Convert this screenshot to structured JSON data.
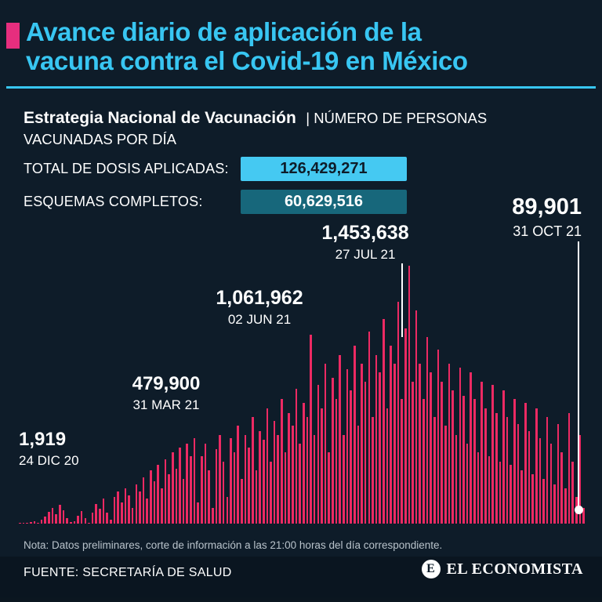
{
  "header": {
    "title_line1": "Avance diario de aplicación de la",
    "title_line2": "vacuna contra el Covid-19 en México",
    "subtitle_bold": "Estrategia Nacional de Vacunación",
    "subtitle_rest": "| NÚMERO DE PERSONAS VACUNADAS POR DÍA"
  },
  "stats": [
    {
      "label": "TOTAL DE DOSIS APLICADAS:",
      "value": "126,429,271"
    },
    {
      "label": "ESQUEMAS COMPLETOS:",
      "value": "60,629,516"
    }
  ],
  "annotations": [
    {
      "value": "1,919",
      "date": "24 DIC 20"
    },
    {
      "value": "479,900",
      "date": "31 MAR 21"
    },
    {
      "value": "1,061,962",
      "date": "02 JUN 21"
    },
    {
      "value": "1,453,638",
      "date": "27 JUL 21"
    },
    {
      "value": "89,901",
      "date": "31 OCT 21"
    }
  ],
  "footer": {
    "note": "Nota: Datos preliminares, corte de información a las 21:00 horas del día correspondiente.",
    "source": "FUENTE: SECRETARÍA DE SALUD",
    "brand": "EL ECONOMISTA",
    "brand_initial": "E"
  },
  "colors": {
    "background": "#0e1c29",
    "accent_cyan": "#38c6f2",
    "accent_pink": "#e62e7e",
    "bar_pink": "#ec2a63",
    "badge_cyan": "#45c9f2",
    "badge_teal": "#17677b",
    "marker_white": "#ffffff"
  },
  "chart_data": {
    "type": "bar",
    "title": "Avance diario de aplicación de la vacuna contra el Covid-19 en México",
    "xlabel": "",
    "ylabel": "Número de personas vacunadas por día",
    "x_range": [
      "24 DIC 20",
      "31 OCT 21"
    ],
    "ylim": [
      0,
      1500000
    ],
    "grid": false,
    "legend": false,
    "key_points": [
      {
        "date": "24 DIC 20",
        "value": 1919
      },
      {
        "date": "31 MAR 21",
        "value": 479900
      },
      {
        "date": "02 JUN 21",
        "value": 1061962
      },
      {
        "date": "27 JUL 21",
        "value": 1453638
      },
      {
        "date": "31 OCT 21",
        "value": 89901
      }
    ],
    "values_are_estimates_between_key_points": true,
    "values": [
      1919,
      500,
      4000,
      9000,
      15000,
      6000,
      22000,
      40000,
      65000,
      88000,
      52000,
      105000,
      76000,
      30000,
      8000,
      12000,
      45000,
      70000,
      30000,
      5000,
      60000,
      110000,
      85000,
      140000,
      60000,
      20000,
      150000,
      180000,
      120000,
      200000,
      160000,
      90000,
      220000,
      180000,
      260000,
      140000,
      300000,
      240000,
      330000,
      200000,
      360000,
      280000,
      400000,
      310000,
      430000,
      250000,
      450000,
      380000,
      479900,
      120000,
      380000,
      450000,
      300000,
      90000,
      420000,
      500000,
      350000,
      150000,
      480000,
      400000,
      550000,
      250000,
      500000,
      430000,
      600000,
      300000,
      520000,
      470000,
      650000,
      350000,
      580000,
      500000,
      700000,
      400000,
      620000,
      550000,
      760000,
      450000,
      680000,
      600000,
      1061962,
      500000,
      780000,
      650000,
      900000,
      400000,
      820000,
      700000,
      950000,
      500000,
      870000,
      750000,
      1000000,
      550000,
      900000,
      800000,
      1080000,
      600000,
      950000,
      850000,
      1150000,
      650000,
      1000000,
      900000,
      1250000,
      700000,
      1100000,
      1453638,
      800000,
      1200000,
      900000,
      700000,
      1050000,
      850000,
      600000,
      980000,
      800000,
      550000,
      900000,
      750000,
      500000,
      880000,
      720000,
      450000,
      850000,
      700000,
      400000,
      800000,
      650000,
      380000,
      780000,
      620000,
      350000,
      750000,
      600000,
      330000,
      700000,
      560000,
      300000,
      680000,
      520000,
      280000,
      650000,
      480000,
      250000,
      600000,
      450000,
      220000,
      560000,
      400000,
      200000,
      620000,
      350000,
      150000,
      500000,
      89901
    ]
  }
}
